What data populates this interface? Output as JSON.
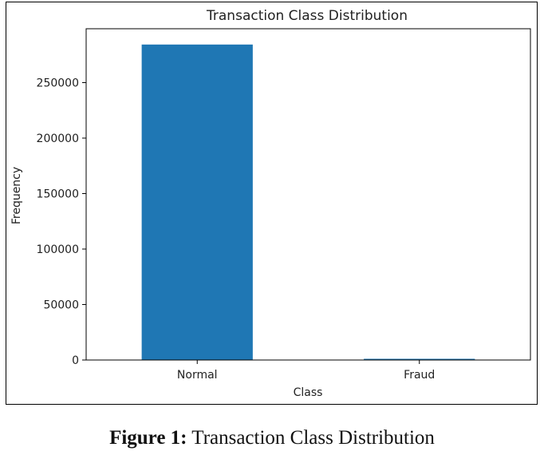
{
  "chart_data": {
    "type": "bar",
    "title": "Transaction Class Distribution",
    "xlabel": "Class",
    "ylabel": "Frequency",
    "categories": [
      "Normal",
      "Fraud"
    ],
    "values": [
      284315,
      492
    ],
    "ylim": [
      0,
      298552
    ],
    "yticks": [
      0,
      50000,
      100000,
      150000,
      200000,
      250000
    ],
    "ytick_labels": [
      "0",
      "50000",
      "100000",
      "150000",
      "200000",
      "250000"
    ],
    "bar_color": "#1f77b4",
    "grid": false,
    "legend": "none"
  },
  "caption": {
    "label": "Figure 1:",
    "text": " Transaction Class Distribution"
  }
}
